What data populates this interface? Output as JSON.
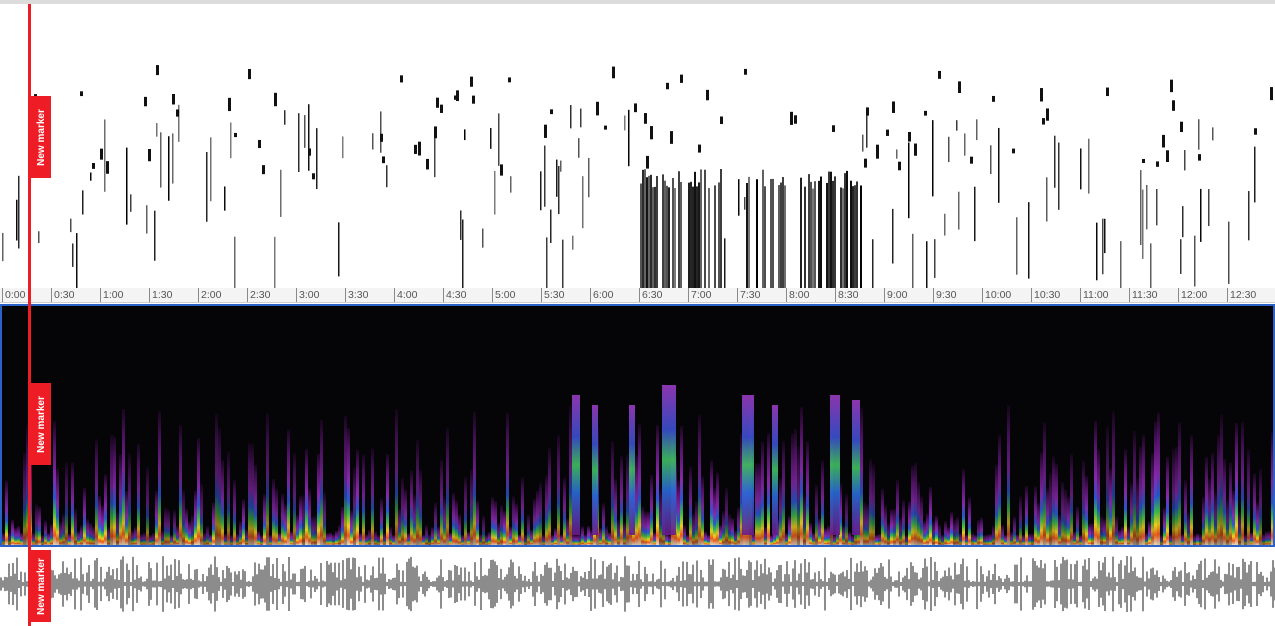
{
  "marker": {
    "label": "New marker",
    "color": "#ee1c25"
  },
  "timeline": {
    "ticks": [
      "0:00",
      "0:30",
      "1:00",
      "1:30",
      "2:00",
      "2:30",
      "3:00",
      "3:30",
      "4:00",
      "4:30",
      "5:00",
      "5:30",
      "6:00",
      "6:30",
      "7:00",
      "7:30",
      "8:00",
      "8:30",
      "9:00",
      "9:30",
      "10:00",
      "10:30",
      "11:00",
      "11:30",
      "12:00",
      "12:30"
    ]
  },
  "panels": {
    "pitch": "pitch-track",
    "spectrogram": "spectrogram",
    "waveform": "waveform"
  },
  "colors": {
    "selection_border": "#2a62c7",
    "waveform": "#8c8c8c",
    "spectrogram_background": "#050508"
  }
}
